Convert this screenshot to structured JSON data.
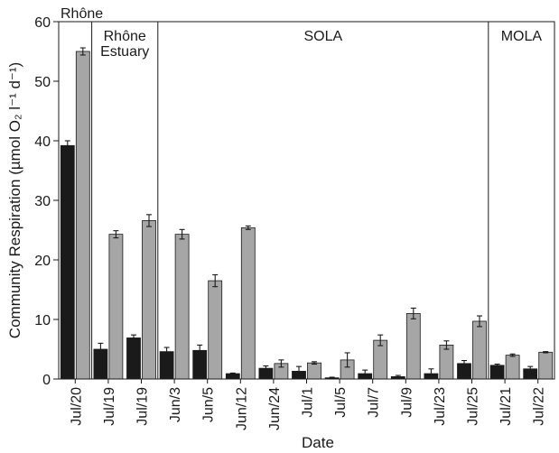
{
  "chart_data": {
    "type": "bar",
    "xlabel": "Date",
    "ylabel": "Community Respiration (µmol O₂ l⁻¹ d⁻¹)",
    "ylim": [
      0,
      60
    ],
    "yticks": [
      0,
      10,
      20,
      30,
      40,
      50,
      60
    ],
    "categories": [
      "Jul/20",
      "Jul/19",
      "Jul/19",
      "Jun/3",
      "Jun/5",
      "Jun/12",
      "Jun/24",
      "Jul/1",
      "Jul/5",
      "Jul/7",
      "Jul/9",
      "Jul/23",
      "Jul/25",
      "Jul/21",
      "Jul/22"
    ],
    "series": [
      {
        "color": "#1a1a1a",
        "values": [
          39.2,
          5.0,
          6.9,
          4.6,
          4.8,
          0.9,
          1.8,
          1.3,
          0.2,
          0.9,
          0.4,
          0.9,
          2.6,
          2.3,
          1.7
        ],
        "errors": [
          0.8,
          1.0,
          0.5,
          0.7,
          0.9,
          0.1,
          0.4,
          0.8,
          0.1,
          0.6,
          0.2,
          0.8,
          0.5,
          0.2,
          0.4
        ]
      },
      {
        "color": "#a6a6a6",
        "values": [
          55.0,
          24.3,
          26.6,
          24.3,
          16.5,
          25.4,
          2.6,
          2.7,
          3.2,
          6.5,
          11.0,
          5.7,
          9.7,
          4.0,
          4.5
        ],
        "errors": [
          0.6,
          0.6,
          1.0,
          0.8,
          1.0,
          0.3,
          0.6,
          0.2,
          1.2,
          0.9,
          0.9,
          0.7,
          0.9,
          0.2,
          0.1
        ]
      }
    ],
    "regions": [
      {
        "label": "Rhône",
        "start": 0,
        "end": 0
      },
      {
        "label": "Rhône\nEstuary",
        "start": 1,
        "end": 2
      },
      {
        "label": "SOLA",
        "start": 3,
        "end": 12
      },
      {
        "label": "MOLA",
        "start": 13,
        "end": 14
      }
    ],
    "grid": false,
    "legend": "none"
  }
}
